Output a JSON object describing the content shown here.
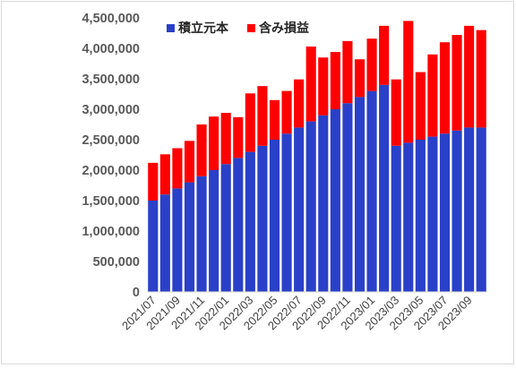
{
  "chart_data": {
    "type": "bar",
    "stacked": true,
    "title": "",
    "xlabel": "",
    "ylabel": "",
    "ylim": [
      0,
      4500000
    ],
    "yticks": [
      0,
      500000,
      1000000,
      1500000,
      2000000,
      2500000,
      3000000,
      3500000,
      4000000,
      4500000
    ],
    "ytick_labels": [
      "0",
      "500,000",
      "1,000,000",
      "1,500,000",
      "2,000,000",
      "2,500,000",
      "3,000,000",
      "3,500,000",
      "4,000,000",
      "4,500,000"
    ],
    "grid": false,
    "legend_position": "top-center",
    "categories": [
      "2021/07",
      "2021/08",
      "2021/09",
      "2021/10",
      "2021/11",
      "2021/12",
      "2022/01",
      "2022/02",
      "2022/03",
      "2022/04",
      "2022/05",
      "2022/06",
      "2022/07",
      "2022/08",
      "2022/09",
      "2022/10",
      "2022/11",
      "2022/12",
      "2023/01",
      "2023/02",
      "2023/03",
      "2023/04",
      "2023/05",
      "2023/06",
      "2023/07",
      "2023/08",
      "2023/09",
      "2023/10"
    ],
    "xtick_labels": [
      "2021/07",
      "",
      "2021/09",
      "",
      "2021/11",
      "",
      "2022/01",
      "",
      "2022/03",
      "",
      "2022/05",
      "",
      "2022/07",
      "",
      "2022/09",
      "",
      "2022/11",
      "",
      "2023/01",
      "",
      "2023/03",
      "",
      "2023/05",
      "",
      "2023/07",
      "",
      "2023/09",
      ""
    ],
    "series": [
      {
        "name": "積立元本",
        "color": "#2a40c8",
        "values": [
          1500000,
          1600000,
          1700000,
          1800000,
          1900000,
          2000000,
          2100000,
          2200000,
          2300000,
          2400000,
          2500000,
          2600000,
          2700000,
          2800000,
          2900000,
          3000000,
          3100000,
          3200000,
          3300000,
          3400000,
          2400000,
          2450000,
          2500000,
          2550000,
          2600000,
          2650000,
          2700000,
          2700000
        ]
      },
      {
        "name": "含み損益",
        "color": "#ff0000",
        "values": [
          620000,
          660000,
          660000,
          680000,
          850000,
          880000,
          840000,
          670000,
          960000,
          980000,
          650000,
          700000,
          790000,
          1230000,
          950000,
          940000,
          1020000,
          620000,
          860000,
          970000,
          1090000,
          2000000,
          1110000,
          1350000,
          1500000,
          1570000,
          1670000,
          1600000
        ]
      }
    ]
  }
}
